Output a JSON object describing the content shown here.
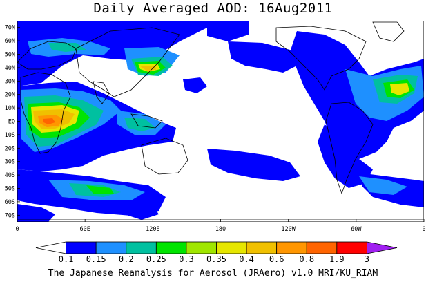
{
  "title": "Daily Averaged AOD: 16Aug2011",
  "footer": "The Japanese Reanalysis for Aerosol (JRAero) v1.0 MRI/KU_RIAM",
  "lat_ticks": [
    "70N",
    "60N",
    "50N",
    "40N",
    "30N",
    "20N",
    "10N",
    "EQ",
    "10S",
    "20S",
    "30S",
    "40S",
    "50S",
    "60S",
    "70S"
  ],
  "lon_ticks": [
    "0",
    "60E",
    "120E",
    "180",
    "120W",
    "60W",
    "0"
  ],
  "colorbar": {
    "labels": [
      "0.1",
      "0.15",
      "0.2",
      "0.25",
      "0.3",
      "0.35",
      "0.4",
      "0.6",
      "0.8",
      "1.9",
      "3"
    ],
    "colors": [
      "#ffffff",
      "#0000ff",
      "#1e90ff",
      "#00c0a0",
      "#00e400",
      "#a0e600",
      "#e6e600",
      "#f0c000",
      "#ff9600",
      "#ff6400",
      "#ff0000",
      "#a020f0"
    ]
  },
  "map": {
    "lat_range": [
      75,
      -75
    ],
    "lon_range": [
      0,
      360
    ],
    "field": "Daily Averaged AOD",
    "date": "16Aug2011"
  }
}
